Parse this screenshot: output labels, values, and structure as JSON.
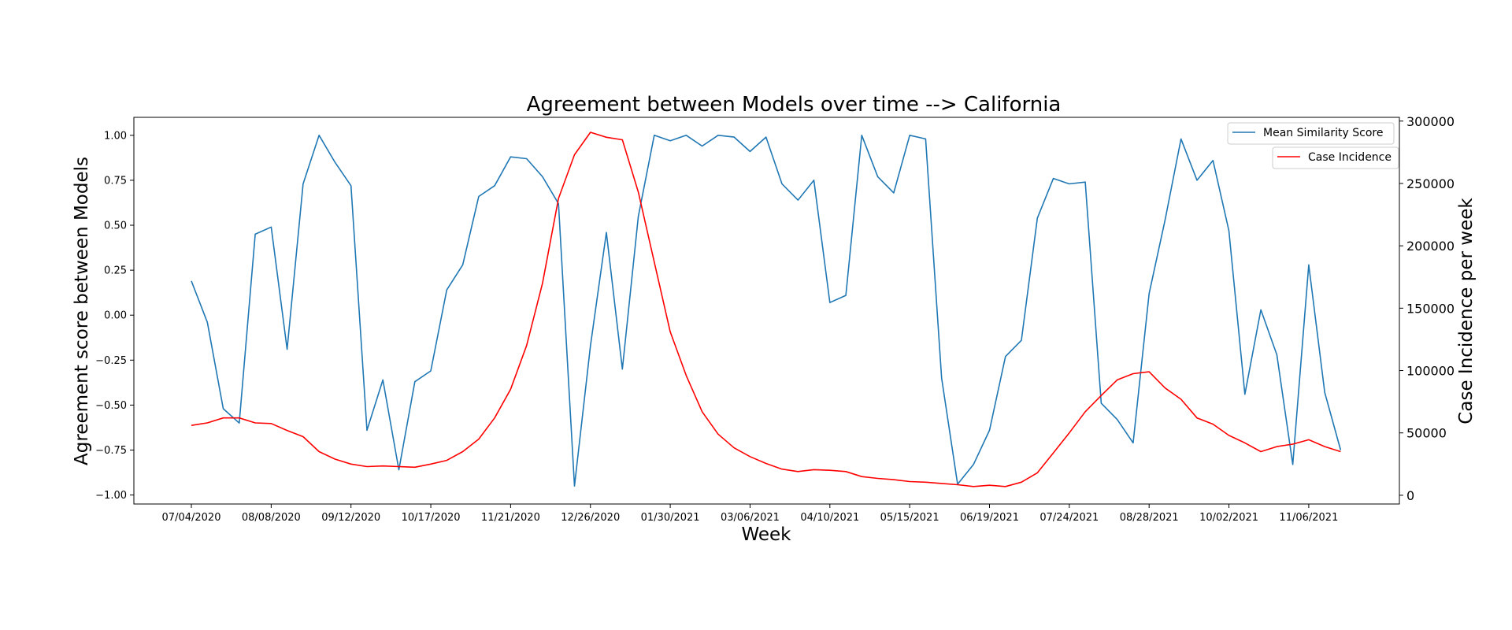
{
  "chart_data": {
    "type": "line",
    "title": "Agreement between Models over time --> California",
    "xlabel": "Week",
    "ylabel_left": "Agreement score between Models",
    "ylabel_right": "Case Incidence per week",
    "x_tick_labels": [
      "07/04/2020",
      "08/08/2020",
      "09/12/2020",
      "10/17/2020",
      "11/21/2020",
      "12/26/2020",
      "01/30/2021",
      "03/06/2021",
      "04/10/2021",
      "05/15/2021",
      "06/19/2021",
      "07/24/2021",
      "08/28/2021",
      "10/02/2021",
      "11/06/2021"
    ],
    "ylim_left": [
      -1.05,
      1.1
    ],
    "yticks_left": [
      "1.00",
      "0.75",
      "0.50",
      "0.25",
      "0.00",
      "−0.25",
      "−0.50",
      "−0.75",
      "−1.00"
    ],
    "ylim_right": [
      -7000,
      303000
    ],
    "yticks_right": [
      "300000",
      "250000",
      "200000",
      "150000",
      "100000",
      "50000",
      "0"
    ],
    "grid": false,
    "legend_placement": "top-right",
    "series": [
      {
        "name": "Mean Similarity Score",
        "color": "#1f77b4",
        "axis": "left",
        "values": [
          0.19,
          -0.04,
          -0.52,
          -0.6,
          0.45,
          0.49,
          -0.19,
          0.73,
          1.0,
          0.85,
          0.72,
          -0.64,
          -0.36,
          -0.86,
          -0.37,
          -0.31,
          0.14,
          0.28,
          0.66,
          0.72,
          0.88,
          0.87,
          0.77,
          0.62,
          -0.95,
          -0.17,
          0.46,
          -0.3,
          0.55,
          1.0,
          0.97,
          1.0,
          0.94,
          1.0,
          0.99,
          0.91,
          0.99,
          0.73,
          0.64,
          0.75,
          0.07,
          0.11,
          1.0,
          0.77,
          0.68,
          1.0,
          0.98,
          -0.35,
          -0.94,
          -0.83,
          -0.64,
          -0.23,
          -0.14,
          0.54,
          0.76,
          0.73,
          0.74,
          -0.49,
          -0.58,
          -0.71,
          0.12,
          0.53,
          0.98,
          0.75,
          0.86,
          0.47,
          -0.44,
          0.03,
          -0.22,
          -0.83,
          0.28,
          -0.43,
          -0.75
        ]
      },
      {
        "name": "Case Incidence",
        "color": "#ff0000",
        "axis": "right",
        "values": [
          56000,
          58000,
          62000,
          62000,
          58000,
          57500,
          52000,
          47000,
          35000,
          29000,
          25000,
          23000,
          23500,
          23000,
          22500,
          25000,
          28000,
          35000,
          45000,
          62000,
          85000,
          120000,
          170000,
          238000,
          273000,
          291000,
          287000,
          285000,
          243000,
          187000,
          131000,
          96000,
          67000,
          49000,
          38000,
          31000,
          25500,
          21000,
          19000,
          20500,
          20000,
          19000,
          15000,
          13500,
          12500,
          11000,
          10500,
          9500,
          8500,
          7000,
          8000,
          7000,
          10500,
          18000,
          34000,
          50000,
          67000,
          80000,
          92500,
          97500,
          99000,
          86000,
          77000,
          62000,
          57000,
          48000,
          42000,
          35000,
          39000,
          41000,
          44500,
          39000,
          35000
        ]
      }
    ]
  }
}
